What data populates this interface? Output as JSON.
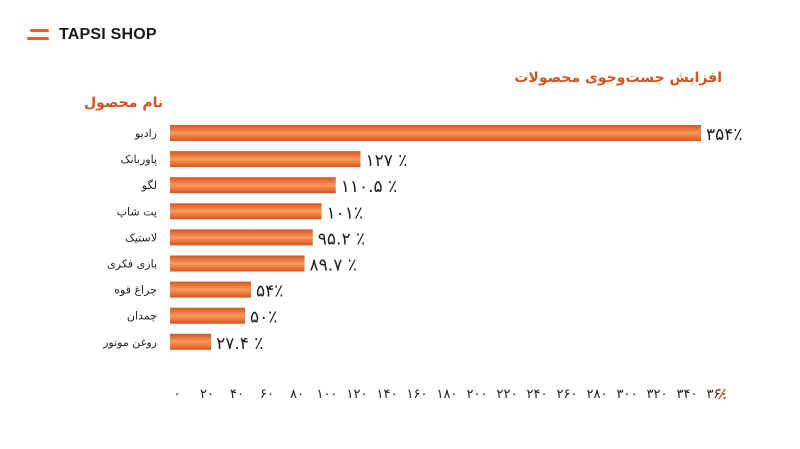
{
  "brand": {
    "name": "TAPSI SHOP"
  },
  "colors": {
    "accent": "#f05a28",
    "bar_dark": "#d9531c",
    "bar_light": "#f99a5c"
  },
  "chart_data": {
    "type": "bar",
    "orientation": "horizontal",
    "title": "افزایش جست‌وجوی محصولات",
    "category_header": "نام محصول",
    "unit_label": "٪",
    "categories": [
      "رادیو",
      "پاوربانک",
      "لگو",
      "پت شاپ",
      "لاستیک",
      "بازی فکری",
      "چراغ قوه",
      "چمدان",
      "روغن موتور"
    ],
    "values": [
      354,
      127,
      110.5,
      101,
      95.2,
      89.7,
      54,
      50,
      27.4
    ],
    "value_labels": [
      "۳۵۴٪",
      "۱۲۷ ٪",
      "۱۱۰.۵ ٪",
      "۱۰۱٪",
      "۹۵.۲ ٪",
      "۸۹.۷ ٪",
      "۵۴٪",
      "۵۰٪",
      "۲۷.۴ ٪"
    ],
    "xlim": [
      0,
      360
    ],
    "ticks": [
      0,
      20,
      40,
      60,
      80,
      100,
      120,
      140,
      160,
      180,
      200,
      220,
      240,
      260,
      280,
      300,
      320,
      340,
      360
    ],
    "tick_labels": [
      "۰",
      "۲۰",
      "۴۰",
      "۶۰",
      "۸۰",
      "۱۰۰",
      "۱۲۰",
      "۱۴۰",
      "۱۶۰",
      "۱۸۰",
      "۲۰۰",
      "۲۲۰",
      "۲۴۰",
      "۲۶۰",
      "۲۸۰",
      "۳۰۰",
      "۳۲۰",
      "۳۴۰",
      "۳۶۰"
    ],
    "grid": false,
    "legend": "none"
  }
}
